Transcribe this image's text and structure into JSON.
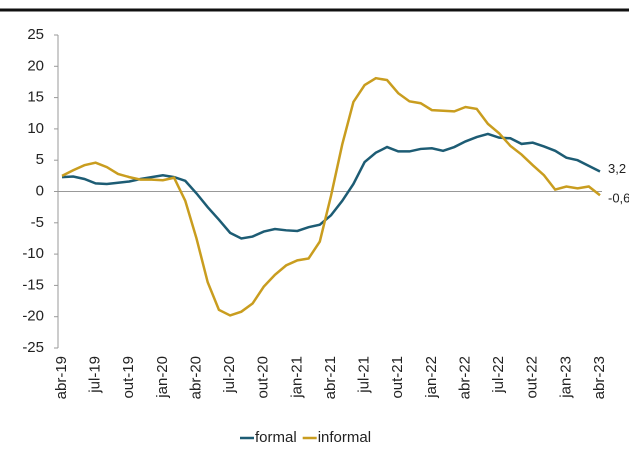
{
  "chart_data": {
    "type": "line",
    "categories": [
      "abr-19",
      null,
      null,
      "jul-19",
      null,
      null,
      "out-19",
      null,
      null,
      "jan-20",
      null,
      null,
      "abr-20",
      null,
      null,
      "jul-20",
      null,
      null,
      "out-20",
      null,
      null,
      "jan-21",
      null,
      null,
      "abr-21",
      null,
      null,
      "jul-21",
      null,
      null,
      "out-21",
      null,
      null,
      "jan-22",
      null,
      null,
      "abr-22",
      null,
      null,
      "jul-22",
      null,
      null,
      "out-22",
      null,
      null,
      "jan-23",
      null,
      null,
      "abr-23"
    ],
    "series": [
      {
        "name": "formal",
        "color": "#1d5c74",
        "values": [
          2.3,
          2.4,
          2.0,
          1.3,
          1.2,
          1.4,
          1.6,
          2.0,
          2.3,
          2.6,
          2.3,
          1.7,
          -0.3,
          -2.5,
          -4.5,
          -6.6,
          -7.5,
          -7.2,
          -6.4,
          -6.0,
          -6.2,
          -6.3,
          -5.7,
          -5.3,
          -3.8,
          -1.5,
          1.2,
          4.7,
          6.2,
          7.1,
          6.4,
          6.4,
          6.8,
          6.9,
          6.5,
          7.1,
          8.0,
          8.7,
          9.2,
          8.6,
          8.5,
          7.6,
          7.8,
          7.2,
          6.5,
          5.4,
          5.0,
          4.1,
          3.2
        ],
        "value_labels": [
          null,
          null,
          null,
          null,
          null,
          null,
          null,
          null,
          null,
          null,
          null,
          null,
          null,
          null,
          null,
          null,
          null,
          null,
          null,
          null,
          null,
          null,
          null,
          null,
          null,
          null,
          null,
          null,
          null,
          null,
          null,
          null,
          null,
          null,
          null,
          null,
          null,
          null,
          null,
          null,
          null,
          null,
          null,
          null,
          null,
          null,
          null,
          null,
          "3,2"
        ]
      },
      {
        "name": "informal",
        "color": "#c99d1f",
        "values": [
          2.5,
          3.4,
          4.2,
          4.6,
          3.9,
          2.8,
          2.3,
          1.9,
          1.9,
          1.8,
          2.2,
          -1.5,
          -7.5,
          -14.5,
          -18.9,
          -19.8,
          -19.2,
          -17.9,
          -15.2,
          -13.3,
          -11.8,
          -11.0,
          -10.7,
          -8.0,
          -0.7,
          7.5,
          14.3,
          17.0,
          18.1,
          17.8,
          15.7,
          14.4,
          14.1,
          13.0,
          12.9,
          12.8,
          13.5,
          13.2,
          10.8,
          9.3,
          7.3,
          5.9,
          4.2,
          2.6,
          0.3,
          0.8,
          0.5,
          0.8,
          -0.6
        ],
        "value_labels": [
          null,
          null,
          null,
          null,
          null,
          null,
          null,
          null,
          null,
          null,
          null,
          null,
          null,
          null,
          null,
          null,
          null,
          null,
          null,
          null,
          null,
          null,
          null,
          null,
          null,
          null,
          null,
          null,
          null,
          null,
          null,
          null,
          null,
          null,
          null,
          null,
          null,
          null,
          null,
          null,
          null,
          null,
          null,
          null,
          null,
          null,
          null,
          null,
          "-0,6"
        ]
      }
    ],
    "ylim": [
      -25,
      25
    ],
    "yticks": [
      -25,
      -20,
      -15,
      -10,
      -5,
      0,
      5,
      10,
      15,
      20,
      25
    ]
  }
}
